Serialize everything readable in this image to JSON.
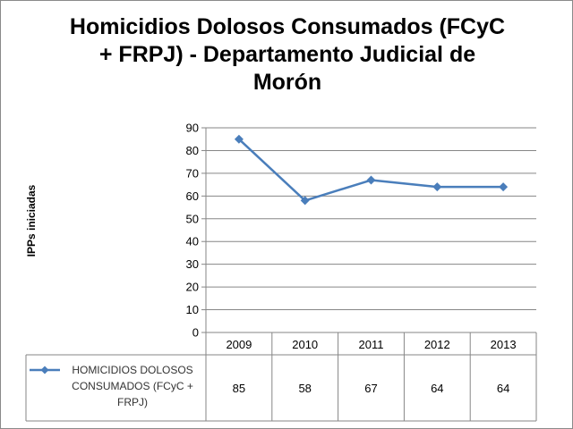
{
  "chart_data": {
    "type": "line",
    "title_lines": [
      "Homicidios Dolosos Consumados (FCyC",
      "+ FRPJ) - Departamento Judicial de",
      "Morón"
    ],
    "xlabel": "",
    "ylabel": "IPPs iniciadas",
    "categories": [
      "2009",
      "2010",
      "2011",
      "2012",
      "2013"
    ],
    "ylim": [
      0,
      90
    ],
    "ytick_step": 10,
    "yticks": [
      "0",
      "10",
      "20",
      "30",
      "40",
      "50",
      "60",
      "70",
      "80",
      "90"
    ],
    "grid": true,
    "legend_position": "data-table",
    "series": [
      {
        "name_lines": [
          "HOMICIDIOS DOLOSOS",
          "CONSUMADOS (FCyC +",
          "FRPJ)"
        ],
        "values": [
          85,
          58,
          67,
          64,
          64
        ],
        "table_values": [
          "85",
          "58",
          "67",
          "64",
          "64"
        ],
        "color": "#4a7ebb",
        "marker": "diamond"
      }
    ]
  }
}
